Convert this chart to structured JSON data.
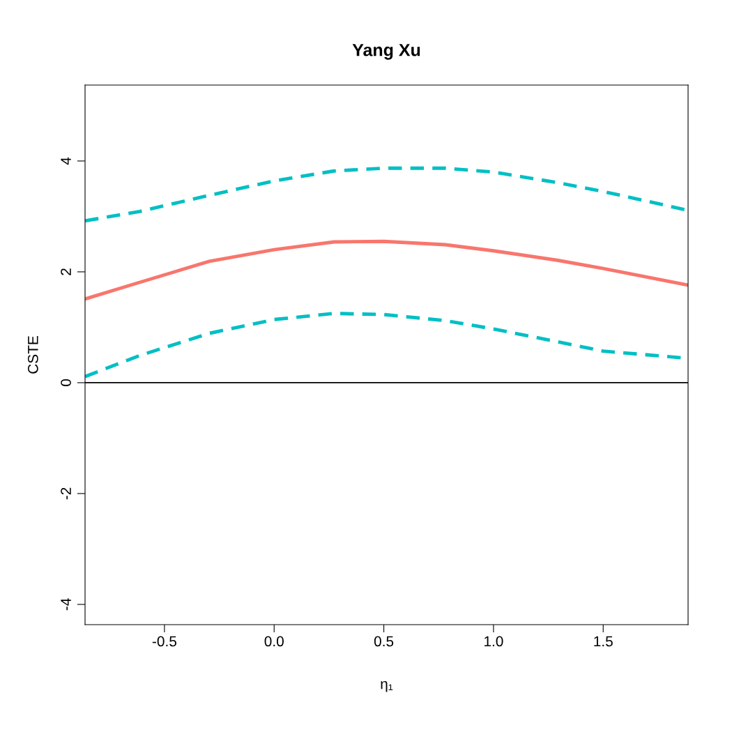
{
  "chart_data": {
    "type": "line",
    "title": "Yang Xu",
    "xlabel": "η₁",
    "ylabel": "CSTE",
    "x": [
      -0.862,
      -0.613,
      -0.296,
      0.0,
      0.273,
      0.5,
      0.78,
      1.0,
      1.29,
      1.5,
      1.887
    ],
    "series": [
      {
        "color": "#f8766d",
        "line_style": "solid",
        "values": [
          1.51,
          1.81,
          2.19,
          2.4,
          2.54,
          2.55,
          2.49,
          2.38,
          2.21,
          2.06,
          1.76
        ]
      },
      {
        "color": "#00bfc4",
        "line_style": "dashed",
        "values": [
          2.92,
          3.09,
          3.38,
          3.64,
          3.82,
          3.87,
          3.87,
          3.8,
          3.61,
          3.45,
          3.11
        ]
      },
      {
        "color": "#00bfc4",
        "line_style": "dashed",
        "values": [
          0.11,
          0.49,
          0.89,
          1.14,
          1.25,
          1.23,
          1.12,
          0.97,
          0.74,
          0.57,
          0.44
        ]
      }
    ],
    "xlim": [
      -0.862,
      1.887
    ],
    "ylim": [
      -4.365,
      5.37
    ],
    "xticks": [
      -0.5,
      {
        "value": 0,
        "label": "0.0"
      },
      0.5,
      {
        "value": 1,
        "label": "1.0"
      },
      1.5
    ],
    "yticks": [
      -4,
      -2,
      0,
      2,
      4
    ],
    "ref_lines": [
      {
        "axis": "y",
        "value": 0,
        "color": "#000000",
        "line_style": "solid"
      }
    ],
    "grid": false,
    "legend": false
  }
}
